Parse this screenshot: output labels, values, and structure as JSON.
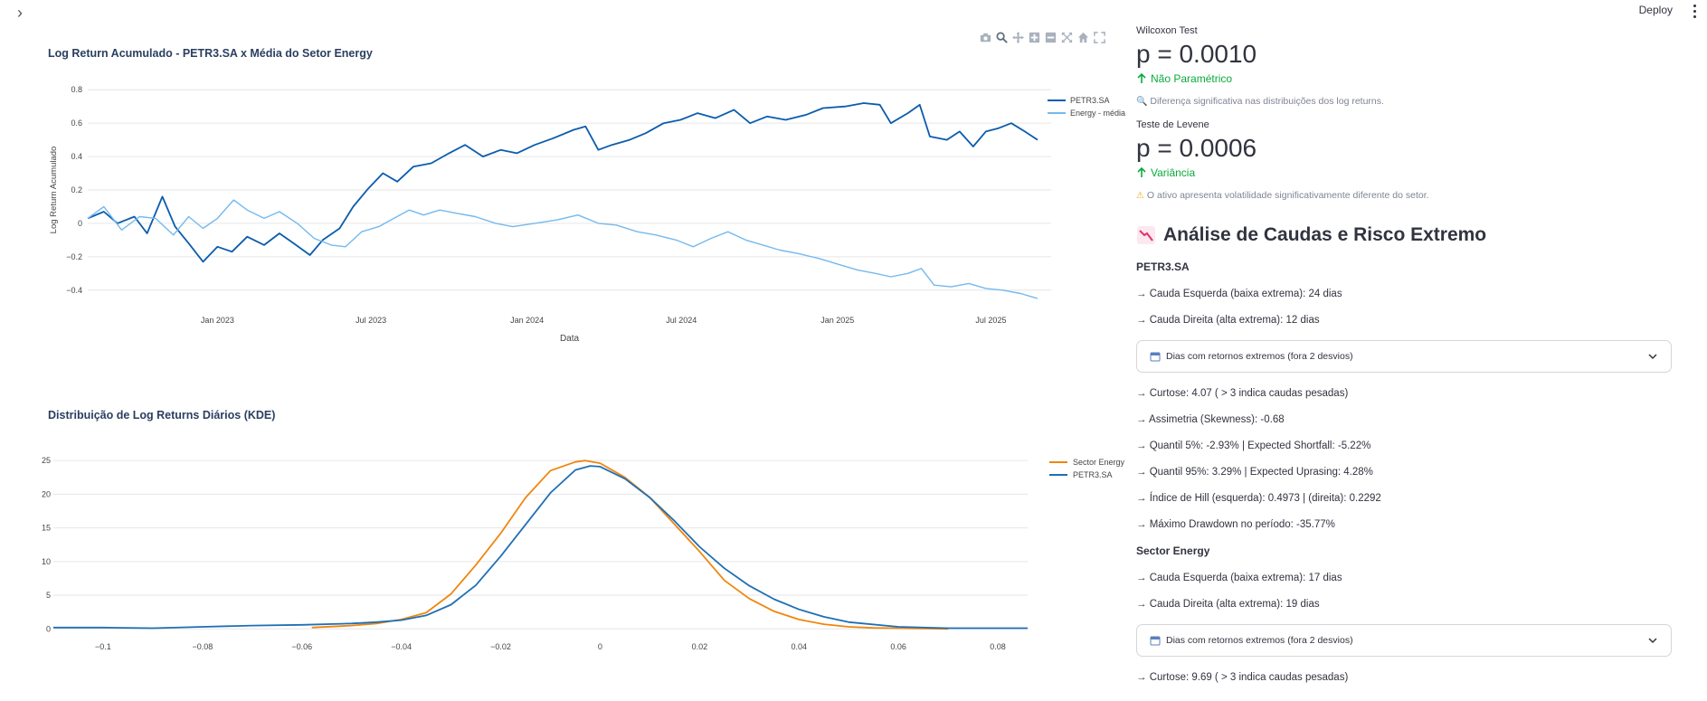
{
  "app": {
    "deploy_label": "Deploy"
  },
  "chart_data": [
    {
      "type": "line",
      "title": "Log Return Acumulado - PETR3.SA x Média do Setor Energy",
      "xlabel": "Data",
      "ylabel": "Log Return Acumulado",
      "ylim": [
        -0.45,
        0.85
      ],
      "yticks": [
        -0.4,
        -0.2,
        0,
        0.2,
        0.4,
        0.6,
        0.8
      ],
      "ytick_labels": [
        "−0.4",
        "−0.2",
        "0",
        "0.2",
        "0.4",
        "0.6",
        "0.8"
      ],
      "xrange": [
        "2022-08-01",
        "2025-09-10"
      ],
      "xticks": [
        {
          "date": "2023-01-01",
          "label": "Jan 2023"
        },
        {
          "date": "2023-07-01",
          "label": "Jul 2023"
        },
        {
          "date": "2024-01-01",
          "label": "Jan 2024"
        },
        {
          "date": "2024-07-01",
          "label": "Jul 2024"
        },
        {
          "date": "2025-01-01",
          "label": "Jan 2025"
        },
        {
          "date": "2025-07-01",
          "label": "Jul 2025"
        }
      ],
      "grid": true,
      "legend_position": "top-right",
      "series": [
        {
          "name": "PETR3.SA",
          "color": "#0b5cad",
          "points": [
            [
              "2022-08-01",
              0.03
            ],
            [
              "2022-08-20",
              0.07
            ],
            [
              "2022-09-05",
              0.0
            ],
            [
              "2022-09-25",
              0.04
            ],
            [
              "2022-10-10",
              -0.06
            ],
            [
              "2022-10-28",
              0.16
            ],
            [
              "2022-11-12",
              -0.02
            ],
            [
              "2022-11-28",
              -0.12
            ],
            [
              "2022-12-15",
              -0.23
            ],
            [
              "2023-01-01",
              -0.14
            ],
            [
              "2023-01-18",
              -0.17
            ],
            [
              "2023-02-05",
              -0.08
            ],
            [
              "2023-02-25",
              -0.13
            ],
            [
              "2023-03-15",
              -0.06
            ],
            [
              "2023-04-01",
              -0.12
            ],
            [
              "2023-04-20",
              -0.19
            ],
            [
              "2023-05-05",
              -0.1
            ],
            [
              "2023-05-25",
              -0.03
            ],
            [
              "2023-06-10",
              0.1
            ],
            [
              "2023-06-28",
              0.21
            ],
            [
              "2023-07-15",
              0.3
            ],
            [
              "2023-08-01",
              0.25
            ],
            [
              "2023-08-20",
              0.34
            ],
            [
              "2023-09-10",
              0.36
            ],
            [
              "2023-10-01",
              0.42
            ],
            [
              "2023-10-20",
              0.47
            ],
            [
              "2023-11-10",
              0.4
            ],
            [
              "2023-12-01",
              0.44
            ],
            [
              "2023-12-20",
              0.42
            ],
            [
              "2024-01-10",
              0.47
            ],
            [
              "2024-02-01",
              0.51
            ],
            [
              "2024-02-25",
              0.56
            ],
            [
              "2024-03-10",
              0.58
            ],
            [
              "2024-03-25",
              0.44
            ],
            [
              "2024-04-10",
              0.47
            ],
            [
              "2024-05-01",
              0.5
            ],
            [
              "2024-05-20",
              0.54
            ],
            [
              "2024-06-10",
              0.6
            ],
            [
              "2024-06-30",
              0.62
            ],
            [
              "2024-07-20",
              0.66
            ],
            [
              "2024-08-10",
              0.63
            ],
            [
              "2024-09-01",
              0.68
            ],
            [
              "2024-09-20",
              0.6
            ],
            [
              "2024-10-10",
              0.64
            ],
            [
              "2024-11-01",
              0.62
            ],
            [
              "2024-11-25",
              0.65
            ],
            [
              "2024-12-15",
              0.69
            ],
            [
              "2025-01-10",
              0.7
            ],
            [
              "2025-02-01",
              0.72
            ],
            [
              "2025-02-20",
              0.71
            ],
            [
              "2025-03-05",
              0.6
            ],
            [
              "2025-03-25",
              0.66
            ],
            [
              "2025-04-08",
              0.71
            ],
            [
              "2025-04-20",
              0.52
            ],
            [
              "2025-05-10",
              0.5
            ],
            [
              "2025-05-25",
              0.55
            ],
            [
              "2025-06-10",
              0.46
            ],
            [
              "2025-06-25",
              0.55
            ],
            [
              "2025-07-10",
              0.57
            ],
            [
              "2025-07-25",
              0.6
            ],
            [
              "2025-08-10",
              0.55
            ],
            [
              "2025-08-25",
              0.5
            ]
          ]
        },
        {
          "name": "Energy - média",
          "color": "#74b9ef",
          "points": [
            [
              "2022-08-01",
              0.03
            ],
            [
              "2022-08-20",
              0.1
            ],
            [
              "2022-09-10",
              -0.04
            ],
            [
              "2022-10-01",
              0.04
            ],
            [
              "2022-10-20",
              0.03
            ],
            [
              "2022-11-10",
              -0.07
            ],
            [
              "2022-11-28",
              0.04
            ],
            [
              "2022-12-15",
              -0.03
            ],
            [
              "2023-01-01",
              0.03
            ],
            [
              "2023-01-20",
              0.14
            ],
            [
              "2023-02-05",
              0.08
            ],
            [
              "2023-02-25",
              0.03
            ],
            [
              "2023-03-15",
              0.07
            ],
            [
              "2023-04-05",
              0.0
            ],
            [
              "2023-04-25",
              -0.09
            ],
            [
              "2023-05-15",
              -0.13
            ],
            [
              "2023-06-01",
              -0.14
            ],
            [
              "2023-06-20",
              -0.05
            ],
            [
              "2023-07-10",
              -0.02
            ],
            [
              "2023-07-28",
              0.03
            ],
            [
              "2023-08-15",
              0.08
            ],
            [
              "2023-09-01",
              0.05
            ],
            [
              "2023-09-20",
              0.08
            ],
            [
              "2023-10-10",
              0.06
            ],
            [
              "2023-11-01",
              0.04
            ],
            [
              "2023-11-25",
              0.0
            ],
            [
              "2023-12-15",
              -0.02
            ],
            [
              "2024-01-10",
              0.0
            ],
            [
              "2024-02-05",
              0.02
            ],
            [
              "2024-03-01",
              0.05
            ],
            [
              "2024-03-25",
              0.0
            ],
            [
              "2024-04-15",
              -0.01
            ],
            [
              "2024-05-10",
              -0.05
            ],
            [
              "2024-06-01",
              -0.07
            ],
            [
              "2024-06-25",
              -0.1
            ],
            [
              "2024-07-15",
              -0.14
            ],
            [
              "2024-08-05",
              -0.09
            ],
            [
              "2024-08-25",
              -0.05
            ],
            [
              "2024-09-15",
              -0.1
            ],
            [
              "2024-10-05",
              -0.13
            ],
            [
              "2024-10-25",
              -0.16
            ],
            [
              "2024-11-15",
              -0.18
            ],
            [
              "2024-12-10",
              -0.21
            ],
            [
              "2025-01-05",
              -0.25
            ],
            [
              "2025-01-25",
              -0.28
            ],
            [
              "2025-02-15",
              -0.3
            ],
            [
              "2025-03-05",
              -0.32
            ],
            [
              "2025-03-25",
              -0.3
            ],
            [
              "2025-04-10",
              -0.27
            ],
            [
              "2025-04-25",
              -0.37
            ],
            [
              "2025-05-15",
              -0.38
            ],
            [
              "2025-06-05",
              -0.36
            ],
            [
              "2025-06-25",
              -0.39
            ],
            [
              "2025-07-15",
              -0.4
            ],
            [
              "2025-08-05",
              -0.42
            ],
            [
              "2025-08-25",
              -0.45
            ]
          ]
        }
      ]
    },
    {
      "type": "line",
      "title": "Distribuição de Log Returns Diários (KDE)",
      "xlabel": "",
      "ylabel": "",
      "xlim": [
        -0.11,
        0.086
      ],
      "ylim": [
        -0.5,
        26.5
      ],
      "xticks": [
        -0.1,
        -0.08,
        -0.06,
        -0.04,
        -0.02,
        0,
        0.02,
        0.04,
        0.06,
        0.08
      ],
      "xtick_labels": [
        "−0.1",
        "−0.08",
        "−0.06",
        "−0.04",
        "−0.02",
        "0",
        "0.02",
        "0.04",
        "0.06",
        "0.08"
      ],
      "yticks": [
        0,
        5,
        10,
        15,
        20,
        25
      ],
      "ytick_labels": [
        "0",
        "5",
        "10",
        "15",
        "20",
        "25"
      ],
      "grid": true,
      "legend_position": "top-right",
      "series": [
        {
          "name": "Sector Energy",
          "color": "#f0860f",
          "x": [
            -0.058,
            -0.05,
            -0.045,
            -0.04,
            -0.035,
            -0.03,
            -0.025,
            -0.02,
            -0.015,
            -0.01,
            -0.005,
            -0.003,
            0.0,
            0.005,
            0.01,
            0.015,
            0.02,
            0.025,
            0.03,
            0.035,
            0.04,
            0.045,
            0.05,
            0.055,
            0.06,
            0.065,
            0.07
          ],
          "y": [
            0.2,
            0.5,
            0.8,
            1.4,
            2.4,
            5.2,
            9.5,
            14.2,
            19.5,
            23.5,
            24.8,
            25.0,
            24.6,
            22.5,
            19.5,
            15.5,
            11.5,
            7.2,
            4.5,
            2.6,
            1.4,
            0.7,
            0.3,
            0.15,
            0.1,
            0.05,
            0.0
          ]
        },
        {
          "name": "PETR3.SA",
          "color": "#1f6fb4",
          "x": [
            -0.11,
            -0.1,
            -0.09,
            -0.08,
            -0.07,
            -0.06,
            -0.05,
            -0.045,
            -0.04,
            -0.035,
            -0.03,
            -0.025,
            -0.02,
            -0.015,
            -0.01,
            -0.005,
            -0.002,
            0.0,
            0.005,
            0.01,
            0.015,
            0.02,
            0.025,
            0.03,
            0.035,
            0.04,
            0.045,
            0.05,
            0.06,
            0.07,
            0.086
          ],
          "y": [
            0.2,
            0.2,
            0.1,
            0.3,
            0.5,
            0.6,
            0.8,
            1.0,
            1.3,
            2.0,
            3.6,
            6.5,
            10.8,
            15.5,
            20.2,
            23.6,
            24.2,
            24.1,
            22.3,
            19.5,
            16.0,
            12.2,
            9.0,
            6.4,
            4.4,
            2.9,
            1.8,
            1.0,
            0.3,
            0.1,
            0.1
          ]
        }
      ]
    }
  ],
  "stats": {
    "wilcoxon": {
      "label": "Wilcoxon Test",
      "value": "p = 0.0010",
      "delta": "Não Paramétrico",
      "note": "Diferença significativa nas distribuições dos log returns."
    },
    "levene": {
      "label": "Teste de Levene",
      "value": "p = 0.0006",
      "delta": "Variância",
      "note": "O ativo apresenta volatilidade significativamente diferente do setor."
    }
  },
  "tails": {
    "heading": "Análise de Caudas e Risco Extremo",
    "petr": {
      "name": "PETR3.SA",
      "left_tail": "→ Cauda Esquerda (baixa extrema): 24 dias",
      "right_tail": "→ Cauda Direita (alta extrema): 12 dias",
      "expander": "Dias com retornos extremos (fora 2 desvios)",
      "kurtosis": "→ Curtose: 4.07 ( > 3 indica caudas pesadas)",
      "skewness": "→ Assimetria (Skewness): -0.68",
      "q5": "→ Quantil 5%: -2.93% | Expected Shortfall: -5.22%",
      "q95": "→ Quantil 95%: 3.29% | Expected Uprasing: 4.28%",
      "hill": "→ Índice de Hill (esquerda): 0.4973 | (direita): 0.2292",
      "drawdown": "→ Máximo Drawdown no período: -35.77%"
    },
    "sector": {
      "name": "Sector Energy",
      "left_tail": "→ Cauda Esquerda (baixa extrema): 17 dias",
      "right_tail": "→ Cauda Direita (alta extrema): 19 dias",
      "expander": "Dias com retornos extremos (fora 2 desvios)",
      "kurtosis": "→ Curtose: 9.69 ( > 3 indica caudas pesadas)"
    }
  }
}
